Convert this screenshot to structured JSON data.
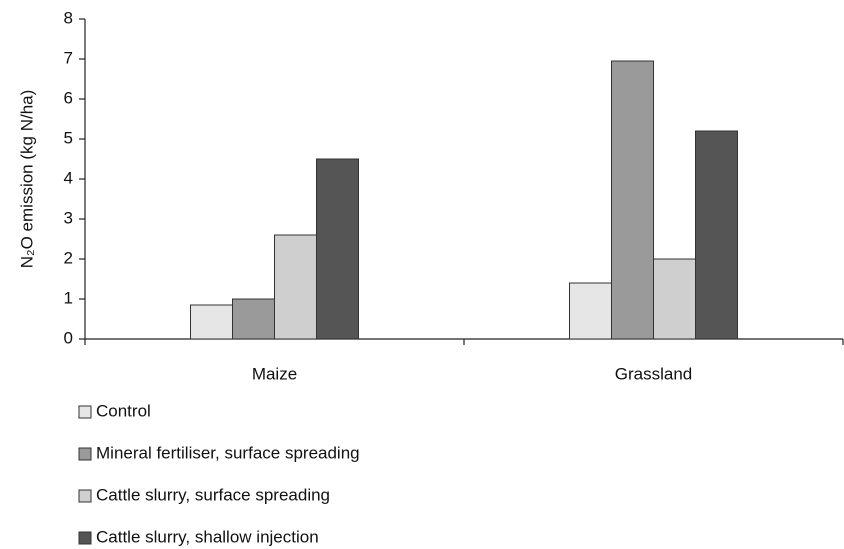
{
  "chart_data": {
    "type": "bar",
    "y_label": "N₂O emission (kg N/ha)",
    "categories": [
      "Maize",
      "Grassland"
    ],
    "series": [
      {
        "name": "Control",
        "color": "#e6e6e6",
        "values": [
          0.85,
          1.4
        ]
      },
      {
        "name": "Mineral fertiliser, surface spreading",
        "color": "#9a9a9a",
        "values": [
          1.0,
          6.95
        ]
      },
      {
        "name": "Cattle slurry, surface spreading",
        "color": "#cfcfcf",
        "values": [
          2.6,
          2.0
        ]
      },
      {
        "name": "Cattle slurry, shallow injection",
        "color": "#555555",
        "values": [
          4.5,
          5.2
        ]
      }
    ],
    "ylim": [
      0,
      8
    ],
    "yticks": [
      0,
      1,
      2,
      3,
      4,
      5,
      6,
      7,
      8
    ],
    "grid": false,
    "legend": "bottom-left"
  }
}
